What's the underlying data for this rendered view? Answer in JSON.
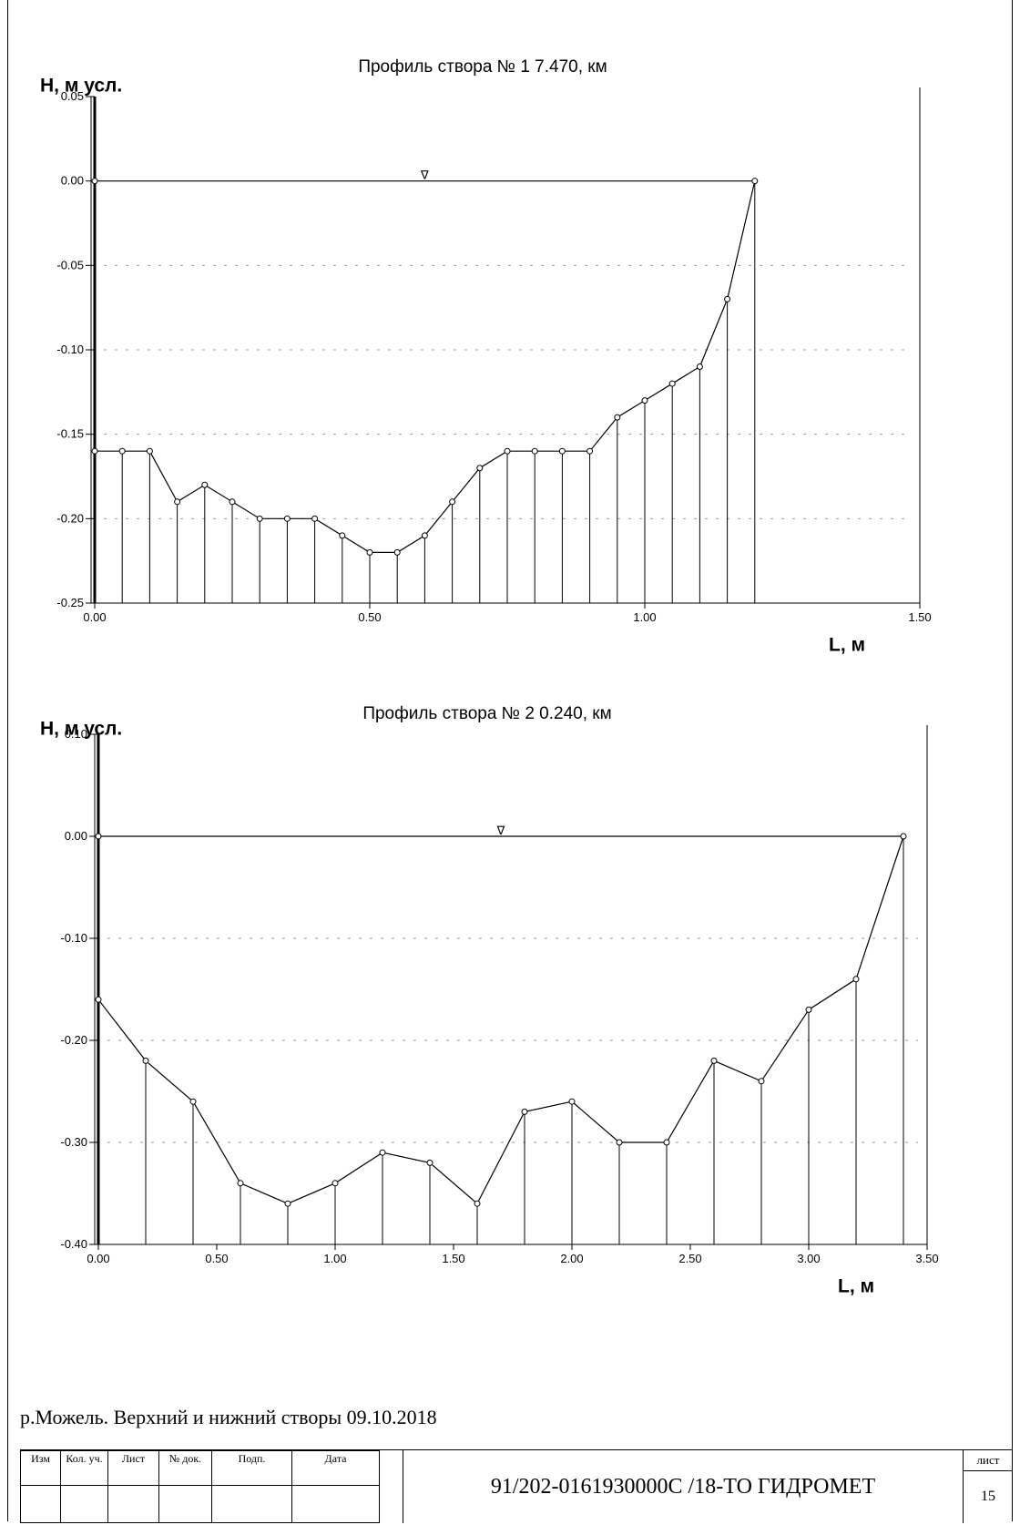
{
  "chart_data": [
    {
      "type": "line",
      "title": "Профиль створа  № 1     7.470, км",
      "xlabel": "L, м",
      "ylabel": "Н, м усл.",
      "xlim": [
        0,
        1.5
      ],
      "ylim": [
        -0.25,
        0.05
      ],
      "xticks": [
        "0.00",
        "0.50",
        "1.00",
        "1.50"
      ],
      "yticks": [
        "0.05",
        "0.00",
        "-0.05",
        "-0.10",
        "-0.15",
        "-0.20",
        "-0.25"
      ],
      "water_level": 0.0,
      "water_marker": "∇",
      "series": [
        {
          "x": [
            0.0,
            0.0,
            0.05,
            0.1,
            0.15,
            0.2,
            0.25,
            0.3,
            0.35,
            0.4,
            0.45,
            0.5,
            0.55,
            0.6,
            0.65,
            0.7,
            0.75,
            0.8,
            0.85,
            0.9,
            0.95,
            1.0,
            1.05,
            1.1,
            1.15,
            1.2
          ],
          "y": [
            0.0,
            -0.16,
            -0.16,
            -0.16,
            -0.19,
            -0.18,
            -0.19,
            -0.2,
            -0.2,
            -0.2,
            -0.21,
            -0.22,
            -0.22,
            -0.21,
            -0.19,
            -0.17,
            -0.16,
            -0.16,
            -0.16,
            -0.16,
            -0.14,
            -0.13,
            -0.12,
            -0.11,
            -0.07,
            0.0
          ]
        }
      ]
    },
    {
      "type": "line",
      "title": "Профиль створа  № 2     0.240, км",
      "xlabel": "L, м",
      "ylabel": "Н, м усл.",
      "xlim": [
        0,
        3.5
      ],
      "ylim": [
        -0.4,
        0.1
      ],
      "xticks": [
        "0.00",
        "0.50",
        "1.00",
        "1.50",
        "2.00",
        "2.50",
        "3.00",
        "3.50"
      ],
      "yticks": [
        "0.10",
        "0.00",
        "-0.10",
        "-0.20",
        "-0.30",
        "-0.40"
      ],
      "water_level": 0.0,
      "water_marker": "∇",
      "series": [
        {
          "x": [
            0.0,
            0.0,
            0.2,
            0.4,
            0.6,
            0.8,
            1.0,
            1.2,
            1.4,
            1.6,
            1.8,
            2.0,
            2.2,
            2.4,
            2.6,
            2.8,
            3.0,
            3.2,
            3.4
          ],
          "y": [
            0.0,
            -0.16,
            -0.22,
            -0.26,
            -0.34,
            -0.36,
            -0.34,
            -0.31,
            -0.32,
            -0.36,
            -0.27,
            -0.26,
            -0.3,
            -0.3,
            -0.22,
            -0.24,
            -0.17,
            -0.14,
            0.0
          ]
        }
      ]
    }
  ],
  "caption": "р.Можель. Верхний и нижний створы 09.10.2018",
  "stamp": {
    "headers": [
      "Изм",
      "Кол. уч.",
      "Лист",
      "№ док.",
      "Подп.",
      "Дата"
    ],
    "code": "91/202-0161930000С /18-ТО ГИДРОМЕТ",
    "sheet_label": "лист",
    "sheet_number": "15"
  }
}
